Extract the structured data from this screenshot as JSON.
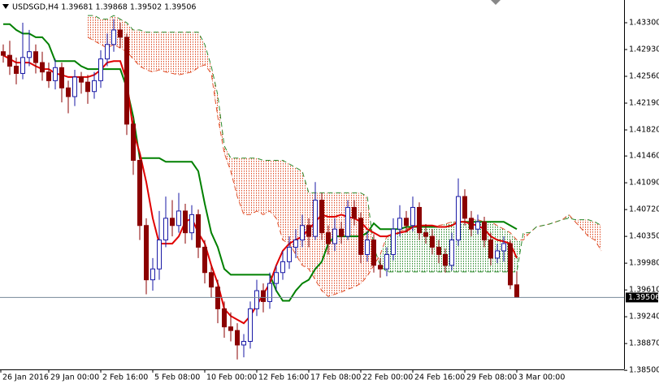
{
  "chart_data": {
    "type": "candlestick",
    "title": "USDSGD,H4  1.39681 1.39868 1.39502 1.39506",
    "categories": [
      "26 Jan 2016",
      null,
      null,
      null,
      null,
      null,
      null,
      "29 Jan 00:00",
      null,
      null,
      null,
      null,
      null,
      null,
      null,
      "2 Feb 16:00",
      null,
      null,
      null,
      null,
      null,
      null,
      null,
      "5 Feb 08:00",
      null,
      null,
      null,
      null,
      null,
      null,
      null,
      "10 Feb 00:00",
      null,
      null,
      null,
      null,
      null,
      null,
      null,
      "12 Feb 16:00",
      null,
      null,
      null,
      null,
      null,
      null,
      null,
      "17 Feb 08:00",
      null,
      null,
      null,
      null,
      null,
      null,
      null,
      "22 Feb 00:00",
      null,
      null,
      null,
      null,
      null,
      null,
      null,
      "24 Feb 16:00",
      null,
      null,
      null,
      null,
      null,
      null,
      null,
      "29 Feb 08:00",
      null,
      null,
      null,
      null,
      null,
      null,
      null,
      "3 Mar 00:00",
      null,
      null,
      null,
      null,
      null,
      null,
      null,
      null,
      null,
      null,
      null,
      null,
      null
    ],
    "open": [
      1.429,
      1.4285,
      1.427,
      1.426,
      1.4282,
      1.429,
      1.4275,
      1.4262,
      1.425,
      1.4268,
      1.424,
      1.4228,
      1.4255,
      1.4248,
      1.4235,
      1.425,
      1.428,
      1.43,
      1.432,
      1.431,
      1.419,
      1.414,
      1.405,
      1.3975,
      1.399,
      1.403,
      1.406,
      1.405,
      1.407,
      1.404,
      1.4065,
      1.402,
      1.3985,
      1.3965,
      1.3935,
      1.391,
      1.3905,
      1.3885,
      1.389,
      1.3935,
      1.396,
      1.3945,
      1.397,
      1.3985,
      1.4,
      1.402,
      1.403,
      1.405,
      1.4035,
      1.4085,
      1.404,
      1.4025,
      1.4045,
      1.4035,
      1.4075,
      1.406,
      1.401,
      1.403,
      1.3995,
      1.399,
      1.401,
      1.4045,
      1.406,
      1.405,
      1.4075,
      1.404,
      1.4035,
      1.402,
      1.401,
      1.3995,
      1.403,
      1.409,
      1.406,
      1.4045,
      1.4055,
      1.403,
      1.4005,
      1.4015,
      1.4025,
      1.39681,
      null,
      null,
      null,
      null,
      null,
      null,
      null,
      null,
      null,
      null,
      null,
      null,
      null
    ],
    "high": [
      1.43,
      1.4305,
      1.4282,
      1.433,
      1.432,
      1.43,
      1.429,
      1.4275,
      1.428,
      1.4275,
      1.425,
      1.4265,
      1.4262,
      1.4258,
      1.4262,
      1.4292,
      1.4315,
      1.4335,
      1.433,
      1.4315,
      1.42,
      1.415,
      1.406,
      1.4005,
      1.407,
      1.409,
      1.4085,
      1.4095,
      1.408,
      1.4078,
      1.4072,
      1.403,
      1.3995,
      1.3975,
      1.3945,
      1.393,
      1.3915,
      1.39,
      1.3945,
      1.3975,
      1.397,
      1.3985,
      1.3995,
      1.4015,
      1.4035,
      1.4045,
      1.4065,
      1.406,
      1.411,
      1.4095,
      1.405,
      1.406,
      1.4055,
      1.4085,
      1.4085,
      1.4068,
      1.4042,
      1.4038,
      1.4005,
      1.402,
      1.406,
      1.4078,
      1.407,
      1.409,
      1.4082,
      1.4052,
      1.4045,
      1.403,
      1.4018,
      1.404,
      1.4115,
      1.41,
      1.407,
      1.4065,
      1.4062,
      1.404,
      1.4025,
      1.4035,
      1.403,
      1.39868,
      null,
      null,
      null,
      null,
      null,
      null,
      null,
      null,
      null,
      null,
      null,
      null,
      null
    ],
    "low": [
      1.4275,
      1.4258,
      1.4245,
      1.4252,
      1.427,
      1.426,
      1.425,
      1.424,
      1.4238,
      1.422,
      1.4205,
      1.4215,
      1.4232,
      1.4218,
      1.4225,
      1.424,
      1.427,
      1.429,
      1.4295,
      1.4175,
      1.412,
      1.403,
      1.3955,
      1.396,
      1.3975,
      1.402,
      1.4035,
      1.404,
      1.4025,
      1.403,
      1.4005,
      1.397,
      1.395,
      1.3915,
      1.3895,
      1.389,
      1.3865,
      1.3868,
      1.388,
      1.3925,
      1.393,
      1.3935,
      1.396,
      1.3975,
      1.399,
      1.4005,
      1.402,
      1.402,
      1.403,
      1.403,
      1.401,
      1.4015,
      1.4025,
      1.403,
      1.405,
      1.3998,
      1.4,
      1.3985,
      1.3978,
      1.398,
      1.4002,
      1.4035,
      1.404,
      1.4042,
      1.403,
      1.4025,
      1.401,
      1.3998,
      1.3985,
      1.3988,
      1.4022,
      1.405,
      1.4035,
      1.4038,
      1.402,
      1.3995,
      1.3998,
      1.4,
      1.3962,
      1.39502,
      null,
      null,
      null,
      null,
      null,
      null,
      null,
      null,
      null,
      null,
      null,
      null,
      null
    ],
    "close": [
      1.4285,
      1.427,
      1.426,
      1.4282,
      1.429,
      1.4275,
      1.4262,
      1.425,
      1.4268,
      1.424,
      1.4228,
      1.4255,
      1.4248,
      1.4235,
      1.425,
      1.428,
      1.43,
      1.432,
      1.431,
      1.419,
      1.414,
      1.405,
      1.3975,
      1.399,
      1.403,
      1.406,
      1.405,
      1.407,
      1.404,
      1.4065,
      1.402,
      1.3985,
      1.3965,
      1.3935,
      1.391,
      1.3905,
      1.3885,
      1.389,
      1.3935,
      1.396,
      1.3945,
      1.397,
      1.3985,
      1.4,
      1.402,
      1.403,
      1.405,
      1.4035,
      1.4085,
      1.404,
      1.4025,
      1.4045,
      1.4035,
      1.4075,
      1.406,
      1.401,
      1.403,
      1.3995,
      1.399,
      1.401,
      1.4045,
      1.406,
      1.405,
      1.4075,
      1.404,
      1.4035,
      1.402,
      1.401,
      1.3995,
      1.403,
      1.409,
      1.406,
      1.4045,
      1.4055,
      1.403,
      1.4005,
      1.4015,
      1.4025,
      1.3968,
      1.39506,
      null,
      null,
      null,
      null,
      null,
      null,
      null,
      null,
      null,
      null,
      null,
      null,
      null
    ],
    "up_color": "#1a1aa6",
    "down_color": "#8b0000",
    "indicators": {
      "tenkan": {
        "color": "#e00000",
        "values": [
          1.4285,
          1.428,
          1.4275,
          1.4275,
          1.4275,
          1.427,
          1.4266,
          1.4266,
          1.426,
          1.4258,
          1.4255,
          1.4255,
          1.4255,
          1.4255,
          1.4258,
          1.4265,
          1.4275,
          1.4277,
          1.4277,
          1.425,
          1.418,
          1.415,
          1.411,
          1.406,
          1.4025,
          1.4025,
          1.4025,
          1.4035,
          1.4055,
          1.406,
          1.404,
          1.4025,
          1.3995,
          1.397,
          1.3935,
          1.3925,
          1.392,
          1.3915,
          1.3925,
          1.394,
          1.3955,
          1.397,
          1.3995,
          1.4015,
          1.4025,
          1.403,
          1.4035,
          1.4045,
          1.4055,
          1.4065,
          1.4062,
          1.4062,
          1.4065,
          1.4062,
          1.406,
          1.4055,
          1.4045,
          1.404,
          1.4035,
          1.4035,
          1.4038,
          1.404,
          1.4042,
          1.4048,
          1.405,
          1.405,
          1.405,
          1.4048,
          1.4048,
          1.405,
          1.4055,
          1.4055,
          1.4052,
          1.405,
          1.4045,
          1.4035,
          1.403,
          1.4028,
          1.4025,
          1.4005,
          null,
          null,
          null,
          null,
          null,
          null,
          null,
          null,
          null,
          null,
          null,
          null,
          null
        ]
      },
      "kijun": {
        "color": "#008000",
        "values": [
          1.4328,
          1.4328,
          1.432,
          1.4315,
          1.4315,
          1.431,
          1.431,
          1.43,
          1.4277,
          1.4277,
          1.4277,
          1.4277,
          1.427,
          1.4266,
          1.4266,
          1.4266,
          1.4266,
          1.4266,
          1.4266,
          1.424,
          1.42,
          1.4143,
          1.4143,
          1.4143,
          1.4143,
          1.4138,
          1.4138,
          1.4138,
          1.4138,
          1.4138,
          1.4125,
          1.408,
          1.404,
          1.402,
          1.399,
          1.3982,
          1.3982,
          1.3982,
          1.3982,
          1.3982,
          1.3982,
          1.3982,
          1.396,
          1.3946,
          1.3946,
          1.396,
          1.397,
          1.3975,
          1.399,
          1.4,
          1.4025,
          1.4035,
          1.4035,
          1.4035,
          1.4035,
          1.4035,
          1.404,
          1.4053,
          1.4045,
          1.4045,
          1.4045,
          1.4045,
          1.4048,
          1.4048,
          1.4048,
          1.4048,
          1.4048,
          1.4048,
          1.4048,
          1.405,
          1.4055,
          1.4055,
          1.4055,
          1.4055,
          1.4055,
          1.4055,
          1.4055,
          1.4055,
          1.405,
          1.4045,
          null,
          null,
          null,
          null,
          null,
          null,
          null,
          null,
          null,
          null,
          null,
          null,
          null
        ]
      },
      "span_a": {
        "color": "#e0502a",
        "values": [
          null,
          null,
          null,
          null,
          null,
          null,
          null,
          null,
          null,
          null,
          null,
          null,
          null,
          1.431,
          1.4305,
          1.43,
          1.4295,
          1.43,
          1.4295,
          1.429,
          1.428,
          1.427,
          1.4265,
          1.4262,
          1.4265,
          1.4262,
          1.426,
          1.4258,
          1.426,
          1.4262,
          1.4268,
          1.4272,
          1.426,
          1.42,
          1.415,
          1.4125,
          1.409,
          1.4065,
          1.4065,
          1.407,
          1.4065,
          1.407,
          1.406,
          1.403,
          1.4025,
          1.401,
          1.3995,
          1.399,
          1.3975,
          1.396,
          1.3952,
          1.3955,
          1.3958,
          1.3962,
          1.3965,
          1.397,
          1.398,
          1.3995,
          1.401,
          1.4035,
          1.404,
          1.4042,
          1.4045,
          1.4048,
          1.405,
          1.405,
          1.4048,
          1.405,
          1.4052,
          1.4055,
          1.4055,
          1.4055,
          1.4058,
          1.4058,
          1.4055,
          1.4055,
          1.405,
          1.4045,
          1.404,
          1.403,
          1.403,
          1.404,
          1.4048,
          1.405,
          1.4052,
          1.4055,
          1.4058,
          1.4065,
          1.4055,
          1.4045,
          1.4035,
          1.403,
          1.4015
        ]
      },
      "span_b": {
        "color": "#2e8b2e",
        "values": [
          null,
          null,
          null,
          null,
          null,
          null,
          null,
          null,
          null,
          null,
          null,
          null,
          null,
          1.434,
          1.434,
          1.4335,
          1.4335,
          1.434,
          1.4335,
          1.433,
          1.432,
          1.432,
          1.4317,
          1.4317,
          1.4317,
          1.4317,
          1.4317,
          1.4317,
          1.4317,
          1.4317,
          1.4317,
          1.43,
          1.427,
          1.423,
          1.416,
          1.4143,
          1.4143,
          1.4143,
          1.4143,
          1.4143,
          1.414,
          1.414,
          1.414,
          1.414,
          1.4135,
          1.413,
          1.4125,
          1.4095,
          1.4095,
          1.4095,
          1.4095,
          1.4095,
          1.4095,
          1.4095,
          1.4095,
          1.4095,
          1.409,
          1.402,
          1.3995,
          1.3986,
          1.3986,
          1.3986,
          1.3986,
          1.3986,
          1.3986,
          1.3986,
          1.3986,
          1.3986,
          1.3986,
          1.3986,
          1.3986,
          1.3986,
          1.3986,
          1.3986,
          1.3986,
          1.3986,
          1.3986,
          1.3986,
          1.3986,
          1.3986,
          1.404,
          1.404,
          1.4048,
          1.405,
          1.4052,
          1.4055,
          1.4058,
          1.406,
          1.4058,
          1.4058,
          1.4058,
          1.4055,
          1.405
        ]
      }
    },
    "ylim": [
      1.38513,
      1.43614
    ],
    "yticks": [
      {
        "value": 1.433,
        "label": "1.43300"
      },
      {
        "value": 1.4293,
        "label": "1.42930"
      },
      {
        "value": 1.4256,
        "label": "1.42560"
      },
      {
        "value": 1.4219,
        "label": "1.42190"
      },
      {
        "value": 1.4182,
        "label": "1.41820"
      },
      {
        "value": 1.4146,
        "label": "1.41460"
      },
      {
        "value": 1.4109,
        "label": "1.41090"
      },
      {
        "value": 1.4072,
        "label": "1.40720"
      },
      {
        "value": 1.4035,
        "label": "1.40350"
      },
      {
        "value": 1.3998,
        "label": "1.39980"
      },
      {
        "value": 1.3961,
        "label": "1.39610"
      },
      {
        "value": 1.3924,
        "label": "1.39240"
      },
      {
        "value": 1.3887,
        "label": "1.38870"
      },
      {
        "value": 1.385,
        "label": "1.38500"
      }
    ],
    "price_line": 1.39506,
    "grid": false
  }
}
